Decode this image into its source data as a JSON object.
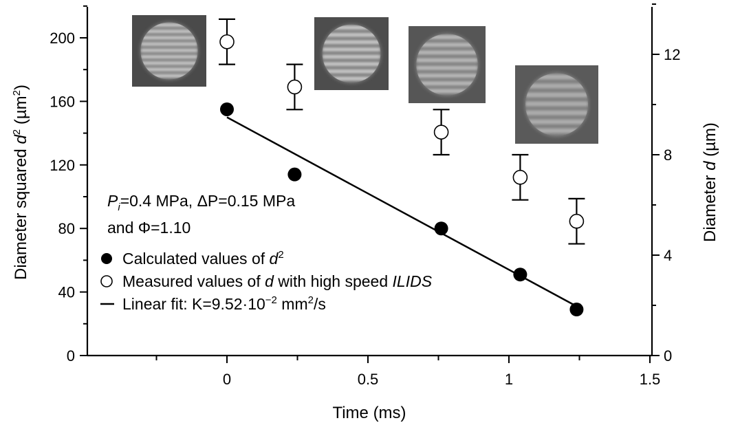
{
  "chart_data": {
    "type": "scatter",
    "xlabel": "Time (ms)",
    "ylabel_left": {
      "before": "Diameter squared ",
      "var": "d",
      "sup": "2",
      "after": " (µm",
      "sup2": "2",
      "close": ")"
    },
    "ylabel_right": {
      "before": "Diameter ",
      "var": "d",
      "after": " (µm)"
    },
    "xlim": [
      -0.5,
      1.5
    ],
    "ylim_left": [
      0,
      220
    ],
    "ylim_right": [
      0,
      14
    ],
    "x_ticks": [
      0,
      0.5,
      1,
      1.5
    ],
    "x_tick_labels": [
      "0",
      "0.5",
      "1",
      "1.5"
    ],
    "y_left_ticks": [
      0,
      40,
      80,
      120,
      160,
      200
    ],
    "y_left_tick_labels": [
      "0",
      "40",
      "80",
      "120",
      "160",
      "200"
    ],
    "y_right_ticks": [
      0,
      4,
      8,
      12
    ],
    "y_right_tick_labels": [
      "0",
      "4",
      "8",
      "12"
    ],
    "series": [
      {
        "name": "Calculated values of d²",
        "axis": "left",
        "marker": "filled-circle",
        "x": [
          0,
          0.24,
          0.76,
          1.04,
          1.24
        ],
        "y": [
          155,
          114,
          80,
          51,
          29
        ]
      },
      {
        "name": "Measured values of d with high speed ILIDS",
        "axis": "right",
        "marker": "open-circle",
        "x": [
          0,
          0.24,
          0.76,
          1.04,
          1.24
        ],
        "y": [
          12.5,
          10.7,
          8.9,
          7.1,
          5.35
        ],
        "error": [
          0.9,
          0.9,
          0.9,
          0.9,
          0.9
        ]
      },
      {
        "name": "Linear fit: K=9.52·10⁻² mm²/s",
        "axis": "left",
        "type": "line",
        "x": [
          0,
          1.24
        ],
        "y": [
          150,
          31
        ]
      }
    ],
    "annotation": {
      "line1": {
        "p": "P",
        "sub": "i",
        "rest1": "=0.4 MPa, ",
        "delta": "ΔP",
        "rest2": "=0.15 MPa"
      },
      "line2": "and Φ=1.10"
    },
    "legend": [
      {
        "marker": "filled-circle",
        "text": "Calculated values of ",
        "var": "d",
        "sup": "2"
      },
      {
        "marker": "open-circle",
        "text": "Measured values of ",
        "var": "d",
        "text2": " with high speed ",
        "italic": "ILIDS"
      },
      {
        "marker": "line",
        "text": "Linear fit: K=9.52·10",
        "sup": "−2",
        "text2": " mm",
        "sup2": "2",
        "text3": "/s"
      }
    ],
    "legend_position": "lower-left",
    "grid": false,
    "inset_images": {
      "description_free": true,
      "count": 4,
      "attached_to_x": [
        0,
        0.76,
        0.76,
        1.24
      ],
      "fringes": [
        9,
        8,
        8,
        7
      ]
    }
  }
}
